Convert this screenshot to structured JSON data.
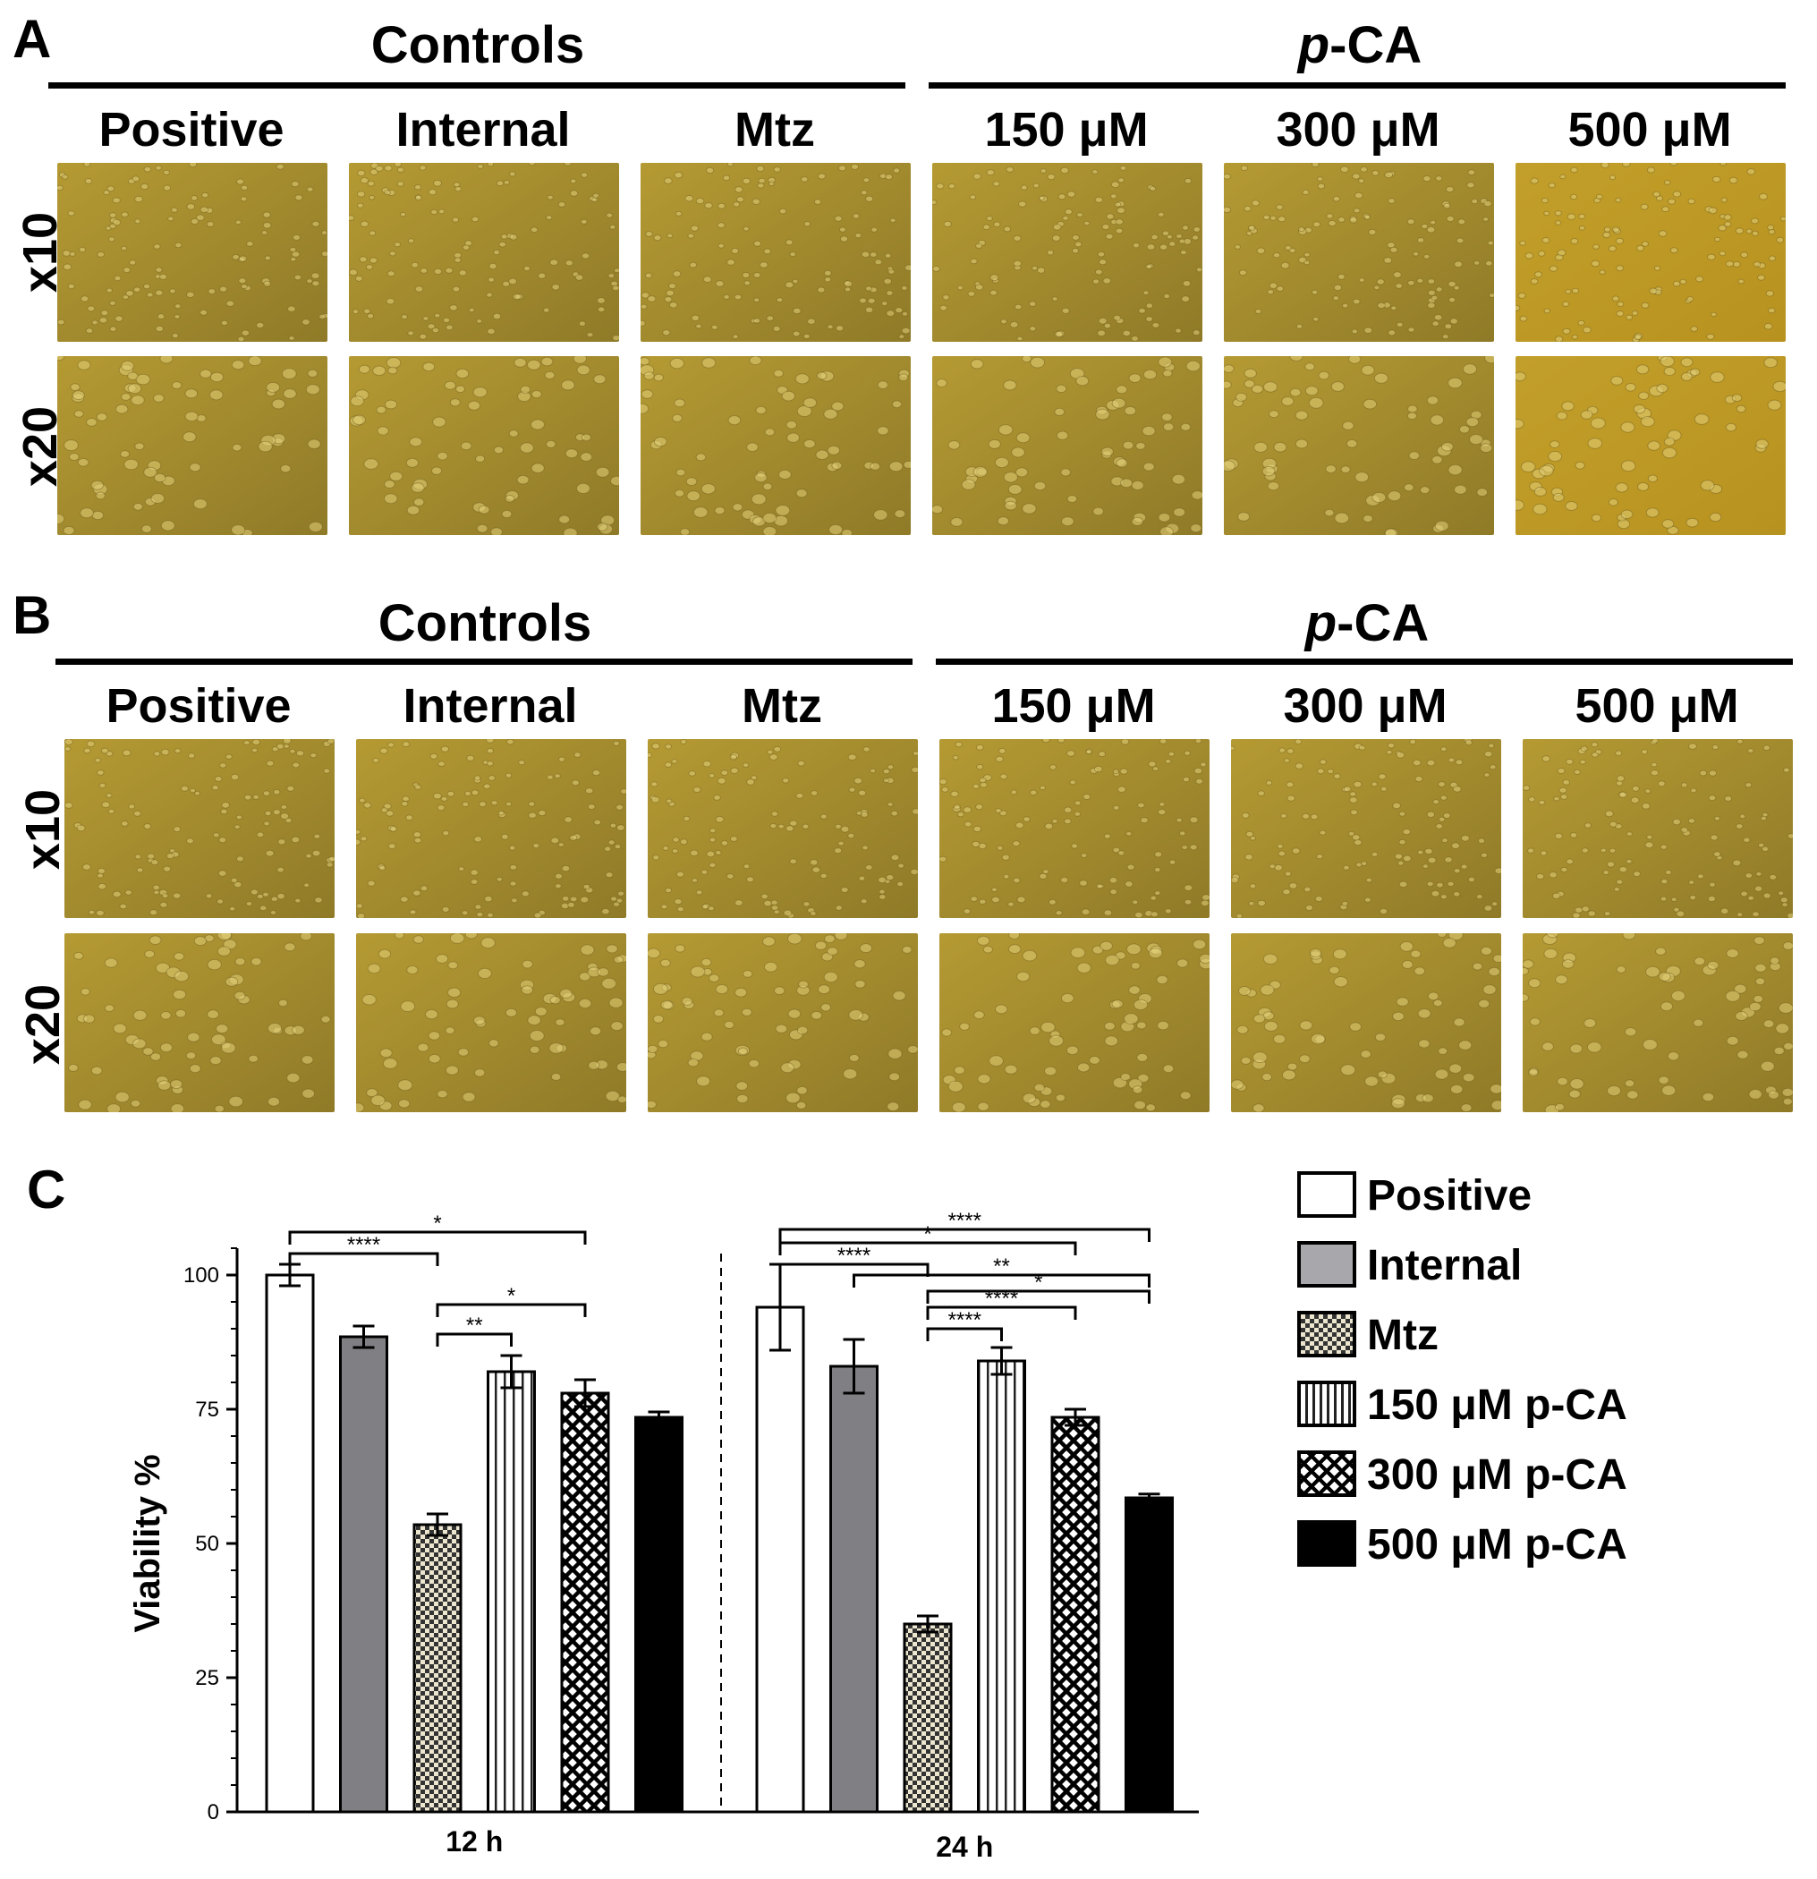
{
  "panel_a": {
    "letter": "A",
    "groups": [
      {
        "title": "Controls"
      },
      {
        "title_italic": "p",
        "title_rest": "-CA"
      }
    ],
    "columns": [
      "Positive",
      "Internal",
      "Mtz",
      "150 μM",
      "300 μM",
      "500 μM"
    ],
    "rows": [
      "x10",
      "x20"
    ]
  },
  "panel_b": {
    "letter": "B",
    "groups": [
      {
        "title": "Controls"
      },
      {
        "title_italic": "p",
        "title_rest": "-CA"
      }
    ],
    "columns": [
      "Positive",
      "Internal",
      "Mtz",
      "150 μM",
      "300 μM",
      "500 μM"
    ],
    "rows": [
      "x10",
      "x20"
    ]
  },
  "panel_c": {
    "letter": "C"
  },
  "colors": {
    "micro_base": "#b59a33",
    "micro_dark": "#8f7a28",
    "micro_cell": "#e2cf78",
    "internal_bar": "#7f7f84",
    "legend_internal": "#a8a8ac"
  },
  "chart_data": {
    "type": "bar",
    "ylabel": "Viability %",
    "ylim": [
      0,
      105
    ],
    "yticks": [
      0,
      25,
      50,
      75,
      100
    ],
    "categories": [
      "12 h",
      "24 h"
    ],
    "series": [
      {
        "name": "Positive",
        "pattern": "white",
        "values": [
          100,
          94
        ],
        "errors": [
          2,
          8
        ]
      },
      {
        "name": "Internal",
        "pattern": "gray",
        "values": [
          88.5,
          83
        ],
        "errors": [
          2,
          5
        ]
      },
      {
        "name": "Mtz",
        "pattern": "checker",
        "values": [
          53.5,
          35
        ],
        "errors": [
          2,
          1.5
        ]
      },
      {
        "name": "150 μM p-CA",
        "pattern": "vertical",
        "values": [
          82,
          84
        ],
        "errors": [
          3,
          2.5
        ]
      },
      {
        "name": "300 μM p-CA",
        "pattern": "crosshatch",
        "values": [
          78,
          73.5
        ],
        "errors": [
          2.5,
          1.5
        ]
      },
      {
        "name": "500 μM p-CA",
        "pattern": "black",
        "values": [
          73.5,
          58.5
        ],
        "errors": [
          1,
          0.7
        ]
      }
    ],
    "significance": [
      {
        "group": 0,
        "from": 0,
        "to": 4,
        "label": "*",
        "level": 108
      },
      {
        "group": 0,
        "from": 0,
        "to": 2,
        "label": "****",
        "level": 104
      },
      {
        "group": 0,
        "from": 2,
        "to": 4,
        "label": "*",
        "level": 94.5
      },
      {
        "group": 0,
        "from": 2,
        "to": 3,
        "label": "**",
        "level": 89
      },
      {
        "group": 1,
        "from": 0,
        "to": 5,
        "label": "****",
        "level": 108.5
      },
      {
        "group": 1,
        "from": 0,
        "to": 4,
        "label": "*",
        "level": 106
      },
      {
        "group": 1,
        "from": 0,
        "to": 2,
        "label": "****",
        "level": 102
      },
      {
        "group": 1,
        "from": 1,
        "to": 5,
        "label": "**",
        "level": 100
      },
      {
        "group": 1,
        "from": 2,
        "to": 5,
        "label": "*",
        "level": 97
      },
      {
        "group": 1,
        "from": 2,
        "to": 4,
        "label": "****",
        "level": 94
      },
      {
        "group": 1,
        "from": 2,
        "to": 3,
        "label": "****",
        "level": 90
      }
    ],
    "legend_position": "right"
  }
}
